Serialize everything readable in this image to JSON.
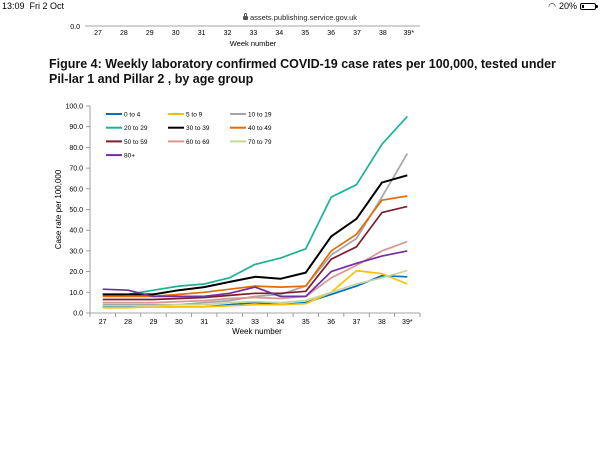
{
  "status_bar": {
    "time": "13:09",
    "date": "Fri 2 Oct",
    "battery": "20%",
    "battery_level": 0.2,
    "icons": [
      "wifi-icon",
      "battery-icon"
    ]
  },
  "browser": {
    "url": "assets.publishing.service.gov.uk",
    "icons": [
      "lock-icon"
    ]
  },
  "previous_chart": {
    "y_tick_label": "0.0",
    "x_ticks": [
      "27",
      "28",
      "29",
      "30",
      "31",
      "32",
      "33",
      "34",
      "35",
      "36",
      "37",
      "38",
      "39*"
    ],
    "xlabel": "Week number"
  },
  "figure": {
    "title": "Figure 4: Weekly laboratory confirmed COVID-19 case rates per 100,000, tested under Pil-lar 1 and Pillar 2 , by age group"
  },
  "chart_data": {
    "type": "line",
    "xlabel": "Week number",
    "ylabel": "Case rate per 100,000",
    "categories": [
      "27",
      "28",
      "29",
      "30",
      "31",
      "32",
      "33",
      "34",
      "35",
      "36",
      "37",
      "38",
      "39*"
    ],
    "ylim": [
      0,
      100
    ],
    "yticks": [
      "0.0",
      "10.0",
      "20.0",
      "30.0",
      "40.0",
      "50.0",
      "60.0",
      "70.0",
      "80.0",
      "90.0",
      "100.0"
    ],
    "legend_position": "top-left",
    "grid": false,
    "series": [
      {
        "name": "0 to 4",
        "color": "#0070c0",
        "values": [
          3,
          3,
          3,
          3,
          3,
          4,
          5,
          4,
          5,
          9,
          13,
          18,
          17.5
        ]
      },
      {
        "name": "5 to 9",
        "color": "#ffc000",
        "values": [
          2.5,
          2.5,
          3,
          3,
          3,
          3.5,
          4,
          4,
          4.5,
          10,
          20.5,
          19,
          14
        ]
      },
      {
        "name": "10 to 19",
        "color": "#a6a6a6",
        "values": [
          4,
          4,
          4,
          4,
          5,
          6,
          8,
          9,
          13,
          28,
          36,
          56,
          77
        ]
      },
      {
        "name": "20 to 29",
        "color": "#1ab394",
        "values": [
          9,
          9,
          11,
          13,
          14,
          17,
          23.5,
          26.5,
          31,
          56,
          62,
          81.5,
          95
        ]
      },
      {
        "name": "30 to 39",
        "color": "#000000",
        "values": [
          9,
          9,
          9,
          11,
          12.5,
          15,
          17.5,
          16.5,
          19.5,
          37,
          45.5,
          63,
          66.5
        ]
      },
      {
        "name": "40 to 49",
        "color": "#e36c09",
        "values": [
          8,
          8,
          8,
          9,
          10,
          11.5,
          13,
          12.5,
          13,
          30,
          38,
          54.5,
          56.5
        ]
      },
      {
        "name": "50 to 59",
        "color": "#7b1e2e",
        "values": [
          6.5,
          6.5,
          6.5,
          7,
          7.5,
          8.5,
          9.5,
          9.5,
          10.5,
          26,
          32,
          48.5,
          51.5
        ]
      },
      {
        "name": "60 to 69",
        "color": "#d99694",
        "values": [
          5,
          5,
          5,
          5.5,
          6,
          7,
          7.5,
          7,
          8,
          17,
          23,
          30,
          34.5
        ]
      },
      {
        "name": "70 to 79",
        "color": "#c4d79b",
        "values": [
          3.5,
          3.5,
          3.5,
          4,
          4,
          5,
          5.5,
          5,
          6,
          10,
          14,
          17,
          20.5
        ]
      },
      {
        "name": "80+",
        "color": "#7030a0",
        "values": [
          11.5,
          11,
          8,
          8,
          8,
          9.5,
          12.5,
          8,
          8,
          20,
          24,
          27.5,
          30
        ]
      }
    ]
  }
}
